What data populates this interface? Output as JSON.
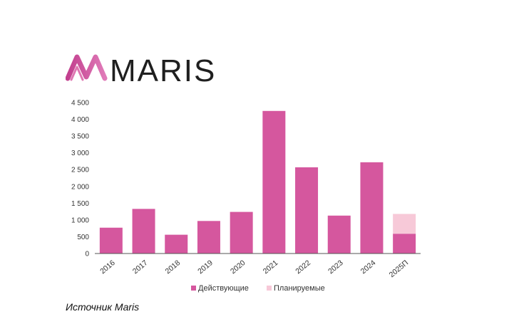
{
  "brand": {
    "name": "MARIS"
  },
  "source_text": "Источник Maris",
  "colors": {
    "active": "#d5579e",
    "planned": "#f7c9d8",
    "axis": "#555555",
    "logo_dark": "#1f1f1f"
  },
  "chart_data": {
    "type": "bar",
    "stacked": true,
    "categories": [
      "2016",
      "2017",
      "2018",
      "2019",
      "2020",
      "2021",
      "2022",
      "2023",
      "2024",
      "2025П"
    ],
    "series": [
      {
        "name": "Действующие",
        "color": "#d5579e",
        "values": [
          770,
          1330,
          560,
          970,
          1240,
          4250,
          2570,
          1130,
          2720,
          590
        ]
      },
      {
        "name": "Планируемые",
        "color": "#f7c9d8",
        "values": [
          0,
          0,
          0,
          0,
          0,
          0,
          0,
          0,
          0,
          590
        ]
      }
    ],
    "ylim": [
      0,
      4500
    ],
    "yticks": [
      {
        "value": 0,
        "label": "0"
      },
      {
        "value": 500,
        "label": "500"
      },
      {
        "value": 1000,
        "label": "1 000"
      },
      {
        "value": 1500,
        "label": "1 500"
      },
      {
        "value": 2000,
        "label": "2 000"
      },
      {
        "value": 2500,
        "label": "2 500"
      },
      {
        "value": 3000,
        "label": "3 000"
      },
      {
        "value": 3500,
        "label": "3 500"
      },
      {
        "value": 4000,
        "label": "4 000"
      },
      {
        "value": 4500,
        "label": "4 500"
      }
    ],
    "grid": false,
    "legend_position": "bottom"
  }
}
